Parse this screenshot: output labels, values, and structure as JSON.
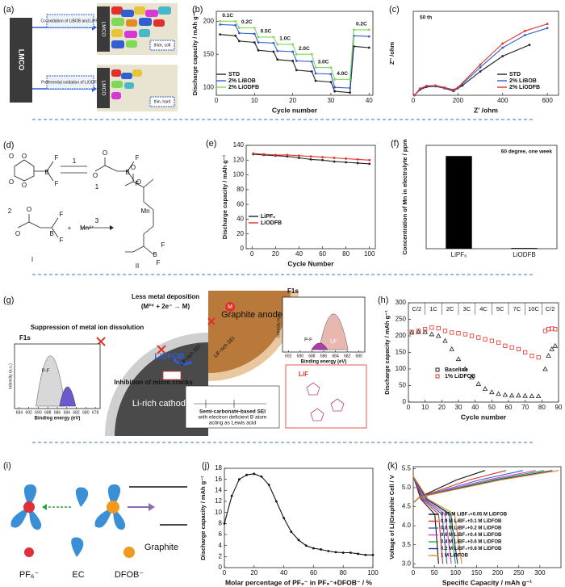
{
  "diagrams": {
    "a": {
      "label": "(a)",
      "cathode": "LMCO",
      "top_process": "Co-oxidation of LiBOB and LiPF₆",
      "bottom_process": "Preferential oxidation of LiODFB",
      "top_particle": "LMCO",
      "bottom_particle": "LMCO",
      "top_film": "thick, soft",
      "bottom_film": "thin, hard"
    },
    "d": {
      "label": "(d)",
      "atoms": [
        "O",
        "O",
        "B",
        "F",
        "F",
        "O",
        "O",
        "O",
        "B",
        "F",
        "F",
        "O",
        "O",
        "B",
        "F",
        "F",
        "O",
        "O",
        "Mn",
        "O",
        "B",
        "F",
        "F"
      ],
      "numbers": [
        "1",
        "1",
        "2",
        "3",
        "I",
        "II"
      ],
      "plus": "+",
      "ion": "Mn²⁺"
    },
    "g": {
      "label": "(g)",
      "deposition": "Less metal deposition",
      "deposition_eq": "(M²⁺ + 2e⁻ → M)",
      "anode": "Graphite anode",
      "suppression": "Suppression of metal ion dissolution",
      "additive": "LiDFOB",
      "cracks": "Inhibition of micro cracks",
      "cathode": "Li-rich cathode",
      "sei_cathode": "LiF-rich SEI",
      "sei_anode": "LiF-rich SEI",
      "sei_box": [
        "Semi-carbonate-based SEI",
        "with electron deficient B atom",
        "acting as Lewis acid"
      ],
      "lif_box": "LiF",
      "metal": "M",
      "insets": [
        {
          "title": "F1s",
          "ylabel": "Intensity (a.u.)",
          "xlabel": "Binding energy (eV)",
          "peaks": [
            "P-F",
            "LiF"
          ],
          "xlim": [
            695,
            677
          ],
          "xticks": [
            694,
            692,
            690,
            688,
            686,
            684,
            682,
            680,
            678
          ]
        },
        {
          "title": "F1s",
          "ylabel": "Intensity (a.u.)",
          "xlabel": "Binding energy (eV)",
          "peaks": [
            "P-F",
            "LiF"
          ],
          "xlim": [
            693,
            679
          ],
          "xticks": [
            692,
            690,
            688,
            686,
            684,
            682,
            680
          ]
        }
      ]
    },
    "i": {
      "label": "(i)",
      "species": [
        "PF₆⁻",
        "EC",
        "DFOB⁻"
      ],
      "electrode": "Graphite"
    }
  },
  "chart_data": [
    {
      "type": "line",
      "panel_label": "(b)",
      "xlabel": "Cycle number",
      "ylabel": "Discharge capacity / mAh g⁻¹",
      "xlim": [
        0,
        41
      ],
      "xticks": [
        0,
        10,
        20,
        30,
        40
      ],
      "ylim": [
        88,
        215
      ],
      "yticks": [
        100,
        150,
        200
      ],
      "markers": true,
      "annotations": [
        "0.1C",
        "0.2C",
        "0.5C",
        "1.0C",
        "2.0C",
        "3.0C",
        "4.0C",
        "0.2C"
      ],
      "x": [
        1,
        5,
        6,
        10,
        11,
        15,
        16,
        20,
        21,
        25,
        26,
        30,
        31,
        35,
        36,
        40
      ],
      "series": [
        {
          "name": "STD",
          "color": "#222222",
          "values": [
            180,
            178,
            170,
            168,
            156,
            154,
            142,
            140,
            126,
            124,
            110,
            108,
            94,
            92,
            162,
            160
          ]
        },
        {
          "name": "2% LiBOB",
          "color": "#2f5fd0",
          "values": [
            195,
            194,
            182,
            181,
            168,
            167,
            155,
            154,
            140,
            139,
            121,
            120,
            100,
            99,
            178,
            177
          ]
        },
        {
          "name": "2% LiODFB",
          "color": "#7ed957",
          "values": [
            200,
            200,
            190,
            190,
            176,
            176,
            165,
            165,
            150,
            150,
            130,
            130,
            112,
            112,
            187,
            187
          ]
        }
      ]
    },
    {
      "type": "line",
      "panel_label": "(c)",
      "xlabel": "Z' /ohm",
      "ylabel": "Z'' /ohm",
      "annotations": [
        "50 th"
      ],
      "xlim": [
        0,
        650
      ],
      "xticks": [
        0,
        200,
        400,
        600
      ],
      "ylim": [
        0,
        300
      ],
      "markers": true,
      "series": [
        {
          "name": "STD",
          "color": "#222222",
          "x": [
            5,
            30,
            60,
            100,
            140,
            180,
            220,
            300,
            400,
            520
          ],
          "values": [
            0,
            20,
            30,
            32,
            25,
            15,
            35,
            85,
            140,
            180
          ]
        },
        {
          "name": "2% LiBOB",
          "color": "#2f5fd0",
          "x": [
            5,
            30,
            60,
            100,
            140,
            180,
            200,
            300,
            400,
            500,
            600
          ],
          "values": [
            0,
            22,
            32,
            33,
            26,
            18,
            25,
            100,
            170,
            215,
            240
          ]
        },
        {
          "name": "2% LiODFB",
          "color": "#e0302a",
          "x": [
            5,
            30,
            60,
            100,
            140,
            180,
            200,
            300,
            400,
            500,
            600
          ],
          "values": [
            0,
            24,
            34,
            35,
            28,
            20,
            28,
            110,
            185,
            230,
            255
          ]
        }
      ]
    },
    {
      "type": "line",
      "panel_label": "(e)",
      "xlabel": "Cycle Number",
      "ylabel": "Discharge capacity / mAh g⁻¹",
      "xlim": [
        -5,
        105
      ],
      "xticks": [
        0,
        20,
        40,
        60,
        80,
        100
      ],
      "ylim": [
        0,
        140
      ],
      "yticks": [
        0,
        20,
        40,
        60,
        80,
        100,
        120,
        140
      ],
      "markers": true,
      "x": [
        1,
        10,
        20,
        30,
        40,
        50,
        60,
        70,
        80,
        90,
        100
      ],
      "series": [
        {
          "name": "LiPF₆",
          "color": "#222222",
          "values": [
            128,
            127,
            126,
            125,
            123,
            121,
            120,
            118,
            117,
            116,
            115
          ]
        },
        {
          "name": "LiODFB",
          "color": "#e0302a",
          "values": [
            129,
            128,
            127,
            127,
            126,
            125,
            124,
            123,
            122,
            121,
            120
          ]
        }
      ]
    },
    {
      "type": "bar",
      "panel_label": "(f)",
      "ylabel": "Concentration of Mn in electrolyte / ppm",
      "annotations": [
        "60 degree, one week"
      ],
      "categories": [
        "LiPF₆",
        "LiODFB"
      ],
      "values": [
        13,
        0.1
      ],
      "color": "#000000",
      "ylim": [
        0,
        14.5
      ]
    },
    {
      "type": "scatter",
      "panel_label": "(h)",
      "xlabel": "Cycle number",
      "ylabel": "Discharge capacity / mAh g⁻¹",
      "xlim": [
        0,
        90
      ],
      "xticks": [
        0,
        10,
        20,
        30,
        40,
        50,
        60,
        70,
        80,
        90
      ],
      "ylim": [
        0,
        300
      ],
      "yticks": [
        0,
        50,
        100,
        150,
        200,
        250,
        300
      ],
      "annotations": [
        "C/2",
        "1C",
        "2C",
        "3C",
        "4C",
        "5C",
        "7C",
        "10C",
        "C/2"
      ],
      "x": [
        2,
        6,
        10,
        14,
        18,
        22,
        26,
        30,
        34,
        38,
        42,
        46,
        50,
        54,
        58,
        62,
        66,
        70,
        74,
        78,
        82,
        84,
        86,
        88
      ],
      "series": [
        {
          "name": "Baseline",
          "color": "#222222",
          "marker": "triangle",
          "values": [
            210,
            212,
            212,
            205,
            200,
            185,
            160,
            130,
            100,
            75,
            55,
            40,
            30,
            25,
            22,
            20,
            20,
            19,
            18,
            18,
            100,
            140,
            160,
            170
          ]
        },
        {
          "name": "1% LiDFOB",
          "color": "#e0302a",
          "marker": "square",
          "values": [
            212,
            215,
            220,
            225,
            223,
            215,
            210,
            208,
            205,
            200,
            195,
            190,
            185,
            180,
            170,
            165,
            160,
            150,
            140,
            135,
            215,
            220,
            222,
            220
          ]
        }
      ]
    },
    {
      "type": "line",
      "panel_label": "(j)",
      "xlabel": "Molar percentage of PF₆⁻ in PF₆⁻+DFOB⁻ / %",
      "ylabel": "Discharge capacity / mAh g⁻¹",
      "xlim": [
        0,
        100
      ],
      "xticks": [
        0,
        20,
        40,
        60,
        80,
        100
      ],
      "ylim": [
        0,
        18
      ],
      "yticks": [
        0,
        2,
        4,
        6,
        8,
        10,
        12,
        14,
        16,
        18
      ],
      "markers": true,
      "x": [
        0,
        5,
        10,
        15,
        20,
        25,
        30,
        35,
        40,
        45,
        50,
        55,
        60,
        65,
        70,
        75,
        80,
        85,
        90,
        95,
        100
      ],
      "series": [
        {
          "color": "#111111",
          "values": [
            8,
            13,
            16,
            16.8,
            17,
            16.5,
            15,
            12,
            9,
            6.5,
            5,
            4,
            3.5,
            3.3,
            3,
            2.8,
            2.7,
            2.7,
            2.5,
            2.3,
            2.3
          ]
        }
      ]
    },
    {
      "type": "line",
      "panel_label": "(k)",
      "xlabel": "Specific Capacity / mAh g⁻¹",
      "ylabel": "Voltage of Li|Graphite Cell / V",
      "xlim": [
        0,
        350
      ],
      "xticks": [
        0,
        50,
        100,
        150,
        200,
        250,
        300
      ],
      "ylim": [
        2.9,
        5.55
      ],
      "yticks": [
        {
          "value": 3,
          "label": "3.0"
        },
        3.5,
        {
          "value": 4,
          "label": "4.0"
        },
        4.5,
        {
          "value": 5,
          "label": "5.0"
        },
        5.5
      ],
      "series": [
        {
          "name": "0.95 M LiBF₄+0.05 M LiDFOB",
          "color": "#111111",
          "x": [
            0,
            15,
            102,
            170,
            null,
            0,
            18,
            51,
            60
          ],
          "values": [
            4.6,
            4.75,
            5.2,
            5.45,
            null,
            5.3,
            4.7,
            4.3,
            3.0
          ]
        },
        {
          "name": "0.9 M LiBF₄+0.1 M LiDFOB",
          "color": "#e0302a",
          "x": [
            0,
            15,
            132,
            220,
            null,
            0,
            21,
            60,
            70
          ],
          "values": [
            4.6,
            4.75,
            5.2,
            5.45,
            null,
            5.3,
            4.7,
            4.3,
            3.0
          ]
        },
        {
          "name": "0.8 M LiBF₄+0.2 M LiDFOB",
          "color": "#2f5fd0",
          "x": [
            0,
            15,
            156,
            260,
            null,
            0,
            24,
            68,
            80
          ],
          "values": [
            4.6,
            4.75,
            5.2,
            5.45,
            null,
            5.3,
            4.7,
            4.3,
            3.0
          ]
        },
        {
          "name": "0.6 M LiBF₄+0.4 M LiDFOB",
          "color": "#d63ad6",
          "x": [
            0,
            15,
            174,
            290,
            null,
            0,
            27,
            76,
            90
          ],
          "values": [
            4.6,
            4.75,
            5.2,
            5.45,
            null,
            5.3,
            4.7,
            4.3,
            3.0
          ]
        },
        {
          "name": "0.4 M LiBF₄+0.6 M LiDFOB",
          "color": "#2aa63a",
          "x": [
            0,
            15,
            186,
            310,
            null,
            0,
            30,
            85,
            100
          ],
          "values": [
            4.6,
            4.75,
            5.2,
            5.45,
            null,
            5.3,
            4.7,
            4.3,
            3.0
          ]
        },
        {
          "name": "0.2 M LiBF₄+0.8 M LiDFOB",
          "color": "#1c2f8a",
          "x": [
            0,
            15,
            198,
            330,
            null,
            0,
            32,
            89,
            105
          ],
          "values": [
            4.6,
            4.75,
            5.2,
            5.45,
            null,
            5.3,
            4.7,
            4.3,
            3.0
          ]
        },
        {
          "name": "1 M LiDFOB",
          "color": "#e58a1c",
          "x": [
            0,
            15,
            207,
            345,
            null,
            0,
            35,
            98,
            115
          ],
          "values": [
            4.6,
            4.75,
            5.2,
            5.45,
            null,
            5.3,
            4.7,
            4.3,
            3.0
          ]
        }
      ]
    }
  ]
}
